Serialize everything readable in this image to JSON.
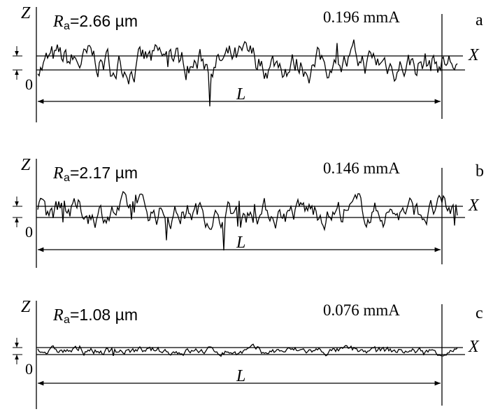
{
  "panels": [
    {
      "axis_z": "Z",
      "ra_symbol": "R",
      "ra_subscript": "a",
      "ra_value": "=2.66 µm",
      "current": "0.196 mmA",
      "letter": "a",
      "axis_x": "X",
      "length": "L",
      "origin": "0"
    },
    {
      "axis_z": "Z",
      "ra_symbol": "R",
      "ra_subscript": "a",
      "ra_value": "=2.17 µm",
      "current": "0.146 mmA",
      "letter": "b",
      "axis_x": "X",
      "length": "L",
      "origin": "0"
    },
    {
      "axis_z": "Z",
      "ra_symbol": "R",
      "ra_subscript": "a",
      "ra_value": "=1.08 µm",
      "current": "0.076 mmA",
      "letter": "c",
      "axis_x": "X",
      "length": "L",
      "origin": "0"
    }
  ]
}
